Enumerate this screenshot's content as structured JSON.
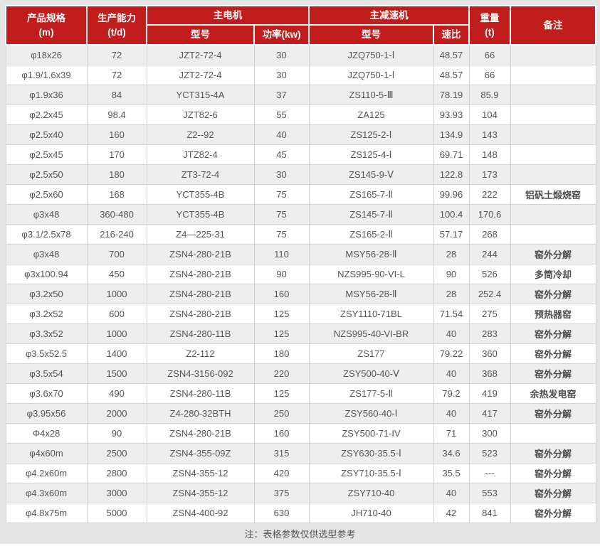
{
  "colors": {
    "header_bg": "#c11d1d",
    "header_text": "#ffffff",
    "row_stripe": "#eeeeee",
    "row_plain": "#ffffff",
    "border": "#d4d4d4",
    "frame_bg": "#e5e5e5",
    "body_text": "#555555"
  },
  "table": {
    "header": {
      "col_product": "产品规格",
      "col_product_unit": "(m)",
      "col_capacity": "生产能力",
      "col_capacity_unit": "(t/d)",
      "group_motor": "主电机",
      "group_reducer": "主减速机",
      "sub_motor_model": "型号",
      "sub_motor_power": "功率(kw)",
      "sub_reducer_model": "型号",
      "sub_reducer_ratio": "速比",
      "col_weight": "重量",
      "col_weight_unit": "(t)",
      "col_remark": "备注"
    },
    "rows": [
      {
        "spec": "φ18x26",
        "capacity": "72",
        "motor_model": "JZT2-72-4",
        "motor_power": "30",
        "reducer_model": "JZQ750-1-Ⅰ",
        "ratio": "48.57",
        "weight": "66",
        "remark": ""
      },
      {
        "spec": "φ1.9/1.6x39",
        "capacity": "72",
        "motor_model": "JZT2-72-4",
        "motor_power": "30",
        "reducer_model": "JZQ750-1-Ⅰ",
        "ratio": "48.57",
        "weight": "66",
        "remark": ""
      },
      {
        "spec": "φ1.9x36",
        "capacity": "84",
        "motor_model": "YCT315-4A",
        "motor_power": "37",
        "reducer_model": "ZS110-5-Ⅲ",
        "ratio": "78.19",
        "weight": "85.9",
        "remark": ""
      },
      {
        "spec": "φ2.2x45",
        "capacity": "98.4",
        "motor_model": "JZT82-6",
        "motor_power": "55",
        "reducer_model": "ZA125",
        "ratio": "93.93",
        "weight": "104",
        "remark": ""
      },
      {
        "spec": "φ2.5x40",
        "capacity": "160",
        "motor_model": "Z2--92",
        "motor_power": "40",
        "reducer_model": "ZS125-2-Ⅰ",
        "ratio": "134.9",
        "weight": "143",
        "remark": ""
      },
      {
        "spec": "φ2.5x45",
        "capacity": "170",
        "motor_model": "JTZ82-4",
        "motor_power": "45",
        "reducer_model": "ZS125-4-Ⅰ",
        "ratio": "69.71",
        "weight": "148",
        "remark": ""
      },
      {
        "spec": "φ2.5x50",
        "capacity": "180",
        "motor_model": "ZT3-72-4",
        "motor_power": "30",
        "reducer_model": "ZS145-9-Ⅴ",
        "ratio": "122.8",
        "weight": "173",
        "remark": ""
      },
      {
        "spec": "φ2.5x60",
        "capacity": "168",
        "motor_model": "YCT355-4B",
        "motor_power": "75",
        "reducer_model": "ZS165-7-Ⅱ",
        "ratio": "99.96",
        "weight": "222",
        "remark": "铝矾土煅烧窑"
      },
      {
        "spec": "φ3x48",
        "capacity": "360-480",
        "motor_model": "YCT355-4B",
        "motor_power": "75",
        "reducer_model": "ZS145-7-Ⅱ",
        "ratio": "100.4",
        "weight": "170.6",
        "remark": ""
      },
      {
        "spec": "φ3.1/2.5x78",
        "capacity": "216-240",
        "motor_model": "Z4—225-31",
        "motor_power": "75",
        "reducer_model": "ZS165-2-Ⅱ",
        "ratio": "57.17",
        "weight": "268",
        "remark": ""
      },
      {
        "spec": "φ3x48",
        "capacity": "700",
        "motor_model": "ZSN4-280-21B",
        "motor_power": "110",
        "reducer_model": "MSY56-28-Ⅱ",
        "ratio": "28",
        "weight": "244",
        "remark": "窑外分解"
      },
      {
        "spec": "φ3x100.94",
        "capacity": "450",
        "motor_model": "ZSN4-280-21B",
        "motor_power": "90",
        "reducer_model": "NZS995-90-VI-L",
        "ratio": "90",
        "weight": "526",
        "remark": "多筒冷却"
      },
      {
        "spec": "φ3.2x50",
        "capacity": "1000",
        "motor_model": "ZSN4-280-21B",
        "motor_power": "160",
        "reducer_model": "MSY56-28-Ⅱ",
        "ratio": "28",
        "weight": "252.4",
        "remark": "窑外分解"
      },
      {
        "spec": "φ3.2x52",
        "capacity": "600",
        "motor_model": "ZSN4-280-21B",
        "motor_power": "125",
        "reducer_model": "ZSY1110-71BL",
        "ratio": "71.54",
        "weight": "275",
        "remark": "预热器窑"
      },
      {
        "spec": "φ3.3x52",
        "capacity": "1000",
        "motor_model": "ZSN4-280-11B",
        "motor_power": "125",
        "reducer_model": "NZS995-40-VI-BR",
        "ratio": "40",
        "weight": "283",
        "remark": "窑外分解"
      },
      {
        "spec": "φ3.5x52.5",
        "capacity": "1400",
        "motor_model": "Z2-112",
        "motor_power": "180",
        "reducer_model": "ZS177",
        "ratio": "79.22",
        "weight": "360",
        "remark": "窑外分解"
      },
      {
        "spec": "φ3.5x54",
        "capacity": "1500",
        "motor_model": "ZSN4-3156-092",
        "motor_power": "220",
        "reducer_model": "ZSY500-40-Ⅴ",
        "ratio": "40",
        "weight": "368",
        "remark": "窑外分解"
      },
      {
        "spec": "φ3.6x70",
        "capacity": "490",
        "motor_model": "ZSN4-280-11B",
        "motor_power": "125",
        "reducer_model": "ZS177-5-Ⅱ",
        "ratio": "79.2",
        "weight": "419",
        "remark": "余热发电窑"
      },
      {
        "spec": "φ3.95x56",
        "capacity": "2000",
        "motor_model": "Z4-280-32BTH",
        "motor_power": "250",
        "reducer_model": "ZSY560-40-Ⅰ",
        "ratio": "40",
        "weight": "417",
        "remark": "窑外分解"
      },
      {
        "spec": "Φ4x28",
        "capacity": "90",
        "motor_model": "ZSN4-280-21B",
        "motor_power": "160",
        "reducer_model": "ZSY500-71-IV",
        "ratio": "71",
        "weight": "300",
        "remark": ""
      },
      {
        "spec": "φ4x60m",
        "capacity": "2500",
        "motor_model": "ZSN4-355-09Z",
        "motor_power": "315",
        "reducer_model": "ZSY630-35.5-Ⅰ",
        "ratio": "34.6",
        "weight": "523",
        "remark": "窑外分解"
      },
      {
        "spec": "φ4.2x60m",
        "capacity": "2800",
        "motor_model": "ZSN4-355-12",
        "motor_power": "420",
        "reducer_model": "ZSY710-35.5-Ⅰ",
        "ratio": "35.5",
        "weight": "---",
        "remark": "窑外分解"
      },
      {
        "spec": "φ4.3x60m",
        "capacity": "3000",
        "motor_model": "ZSN4-355-12",
        "motor_power": "375",
        "reducer_model": "ZSY710-40",
        "ratio": "40",
        "weight": "553",
        "remark": "窑外分解"
      },
      {
        "spec": "φ4.8x75m",
        "capacity": "5000",
        "motor_model": "ZSN4-400-92",
        "motor_power": "630",
        "reducer_model": "JH710-40",
        "ratio": "42",
        "weight": "841",
        "remark": "窑外分解"
      }
    ],
    "note": "注：表格参数仅供选型参考"
  }
}
